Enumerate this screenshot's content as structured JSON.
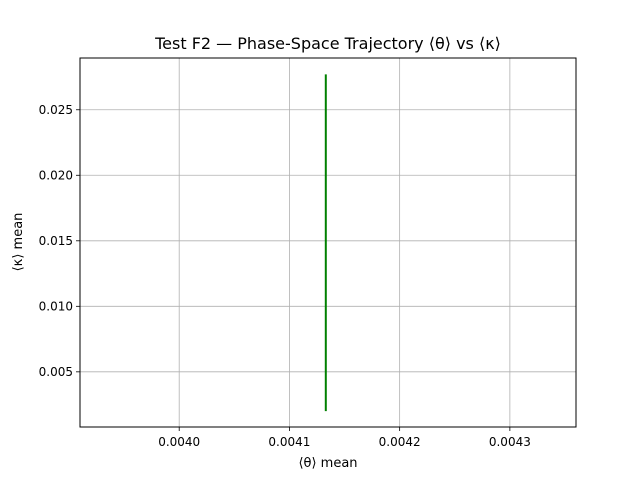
{
  "chart_data": {
    "type": "line",
    "title": "Test F2 — Phase-Space Trajectory ⟨θ⟩ vs ⟨κ⟩",
    "xlabel": "⟨θ⟩ mean",
    "ylabel": "⟨κ⟩ mean",
    "xlim": [
      0.00391,
      0.00436
    ],
    "ylim": [
      0.00079,
      0.02895
    ],
    "xticks": [
      0.004,
      0.0041,
      0.0042,
      0.0043
    ],
    "xtick_labels": [
      "0.0040",
      "0.0041",
      "0.0042",
      "0.0043"
    ],
    "yticks": [
      0.005,
      0.01,
      0.015,
      0.02,
      0.025
    ],
    "ytick_labels": [
      "0.005",
      "0.010",
      "0.015",
      "0.020",
      "0.025"
    ],
    "grid": true,
    "series": [
      {
        "color": "#008000",
        "x": [
          0.004133,
          0.004133
        ],
        "y": [
          0.002,
          0.0277
        ]
      }
    ]
  }
}
